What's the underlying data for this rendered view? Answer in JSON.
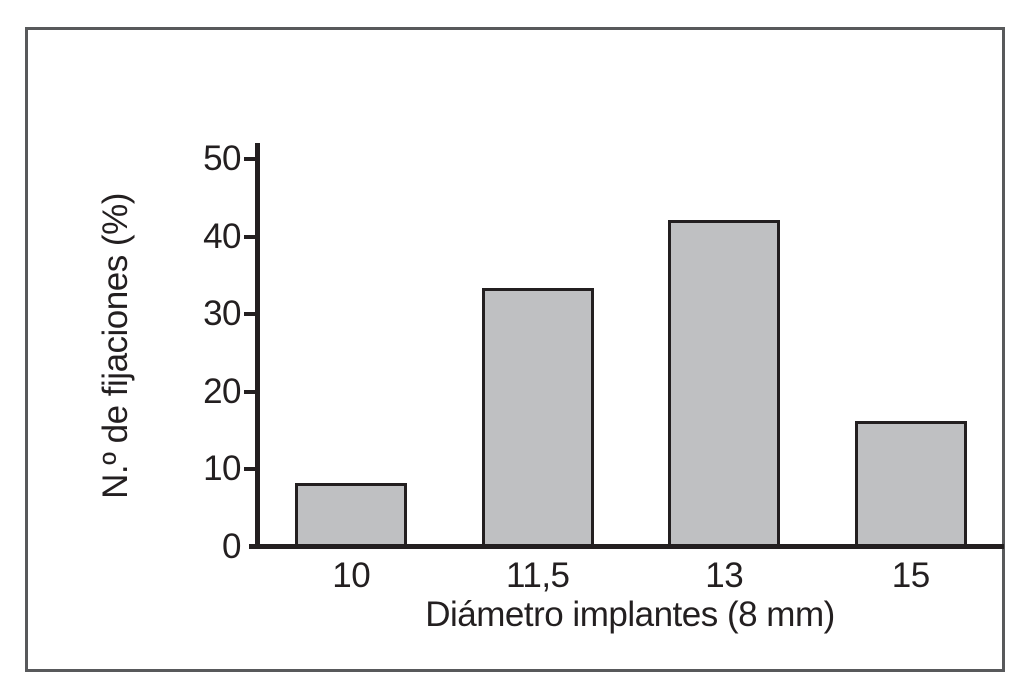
{
  "figure": {
    "background": "#ffffff",
    "frame_color": "#58595b",
    "ink_color": "#231f20"
  },
  "chart_data": {
    "type": "bar",
    "title": "",
    "categories": [
      "10",
      "11,5",
      "13",
      "15"
    ],
    "values": [
      8.3,
      33.4,
      42.2,
      16.2
    ],
    "xlabel": "Diámetro implantes (8 mm)",
    "ylabel": "N.º de fijaciones (%)",
    "ylim": [
      0,
      50
    ],
    "yticks": [
      0,
      10,
      20,
      30,
      40,
      50
    ],
    "grid": false,
    "legend_position": "none",
    "bar_fill": "#bfc0c2",
    "bar_border": "#231f20"
  }
}
